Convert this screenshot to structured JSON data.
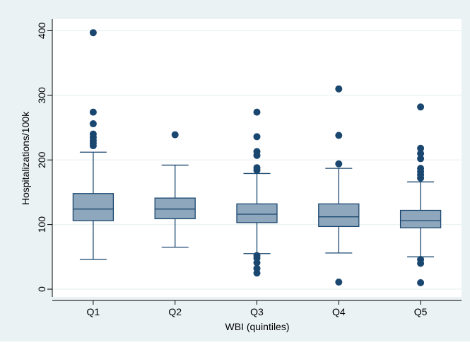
{
  "chart_data": {
    "type": "box",
    "xlabel": "WBI (quintiles)",
    "ylabel": "Hospitalizations/100k",
    "ylim": [
      -12,
      418
    ],
    "yticks": [
      0,
      100,
      200,
      300,
      400
    ],
    "grid": true,
    "colors": {
      "outer_background": "#eaf2f3",
      "plot_background": "#ffffff",
      "box_fill": "#8ea7bd",
      "line": "#1a476f",
      "outlier": "#1a476f",
      "grid": "#eaf2f3"
    },
    "categories": [
      "Q1",
      "Q2",
      "Q3",
      "Q4",
      "Q5"
    ],
    "boxes": [
      {
        "category": "Q1",
        "whisker_low": 46,
        "q1": 106,
        "median": 124,
        "q3": 148,
        "whisker_high": 212,
        "outliers": [
          397,
          274,
          256,
          240,
          235,
          230,
          226,
          222
        ]
      },
      {
        "category": "Q2",
        "whisker_low": 65,
        "q1": 109,
        "median": 124,
        "q3": 141,
        "whisker_high": 192,
        "outliers": [
          239
        ]
      },
      {
        "category": "Q3",
        "whisker_low": 55,
        "q1": 103,
        "median": 116,
        "q3": 132,
        "whisker_high": 179,
        "outliers": [
          274,
          236,
          213,
          207,
          188,
          184,
          52,
          48,
          41,
          32,
          25
        ]
      },
      {
        "category": "Q4",
        "whisker_low": 56,
        "q1": 97,
        "median": 112,
        "q3": 132,
        "whisker_high": 187,
        "outliers": [
          310,
          238,
          194,
          11
        ]
      },
      {
        "category": "Q5",
        "whisker_low": 50,
        "q1": 95,
        "median": 106,
        "q3": 122,
        "whisker_high": 166,
        "outliers": [
          282,
          218,
          210,
          202,
          187,
          182,
          177,
          172,
          46,
          40,
          10
        ]
      }
    ]
  }
}
